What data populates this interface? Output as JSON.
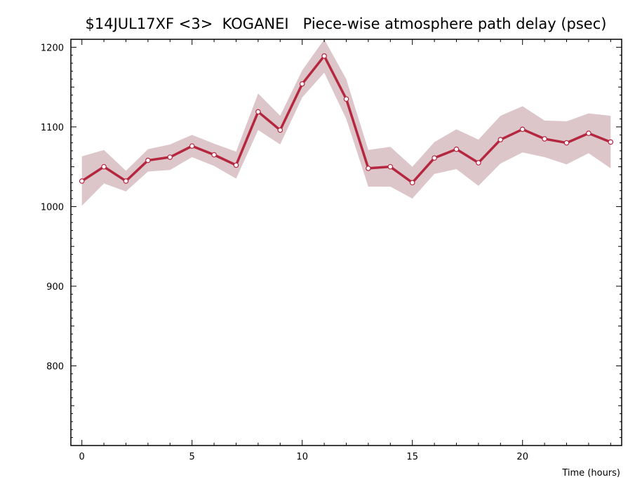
{
  "chart_data": {
    "type": "line",
    "title": "$14JUL17XF <3>  KOGANEI   Piece-wise atmosphere path delay (psec)",
    "xlabel": "Time (hours)",
    "ylabel": "",
    "xlim": [
      -0.5,
      24.5
    ],
    "ylim": [
      700,
      1210
    ],
    "x_ticks": [
      0,
      5,
      10,
      15,
      20
    ],
    "y_ticks": [
      800,
      900,
      1000,
      1100,
      1200
    ],
    "grid": false,
    "colors": {
      "line": "#b5263f",
      "band": "#dcc6ca",
      "marker_fill": "#ffffff"
    },
    "series": [
      {
        "x": [
          0,
          1,
          2,
          3,
          4,
          5,
          6,
          7,
          8,
          9,
          10,
          11,
          12,
          13,
          14,
          15,
          16,
          17,
          18,
          19,
          20,
          21,
          22,
          23,
          24
        ],
        "values": [
          1032,
          1050,
          1032,
          1058,
          1062,
          1076,
          1065,
          1052,
          1119,
          1096,
          1154,
          1189,
          1135,
          1048,
          1050,
          1030,
          1061,
          1072,
          1055,
          1084,
          1097,
          1085,
          1080,
          1092,
          1081
        ],
        "upper": [
          1063,
          1071,
          1045,
          1072,
          1078,
          1090,
          1079,
          1069,
          1142,
          1114,
          1171,
          1210,
          1160,
          1071,
          1075,
          1050,
          1081,
          1097,
          1084,
          1114,
          1126,
          1108,
          1107,
          1117,
          1114
        ],
        "lower": [
          1001,
          1029,
          1019,
          1044,
          1046,
          1062,
          1051,
          1035,
          1096,
          1078,
          1137,
          1168,
          1110,
          1025,
          1025,
          1010,
          1041,
          1047,
          1026,
          1054,
          1068,
          1062,
          1053,
          1067,
          1048
        ]
      }
    ]
  }
}
